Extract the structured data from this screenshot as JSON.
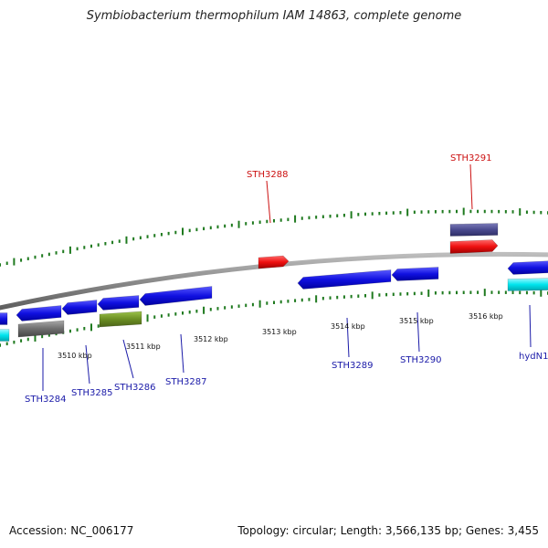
{
  "title": "Symbiobacterium thermophilum IAM 14863, complete genome",
  "footer": {
    "accession": "Accession: NC_006177",
    "summary": "Topology: circular; Length: 3,566,135 bp; Genes: 3,455"
  },
  "colors": {
    "backbone": "#8a8a8a",
    "tick": "#1f7a1f",
    "gene_blue": "#1010e0",
    "gene_red": "#ee1010",
    "gene_cyan": "#00e5ee",
    "gene_gray": "#6e6e6e",
    "gene_olive": "#6b8e23",
    "gene_slate": "#4a4a8e",
    "label_blue": "#1a1aa8",
    "label_red": "#cc1111"
  },
  "scale_labels": [
    "3510 kbp",
    "3511 kbp",
    "3512 kbp",
    "3513 kbp",
    "3514 kbp",
    "3515 kbp",
    "3516 kbp"
  ],
  "labels_top": [
    "STH3288",
    "STH3291"
  ],
  "labels_bottom": [
    "STH3284",
    "STH3285",
    "STH3286",
    "STH3287",
    "STH3289",
    "STH3290",
    "hydN1"
  ]
}
